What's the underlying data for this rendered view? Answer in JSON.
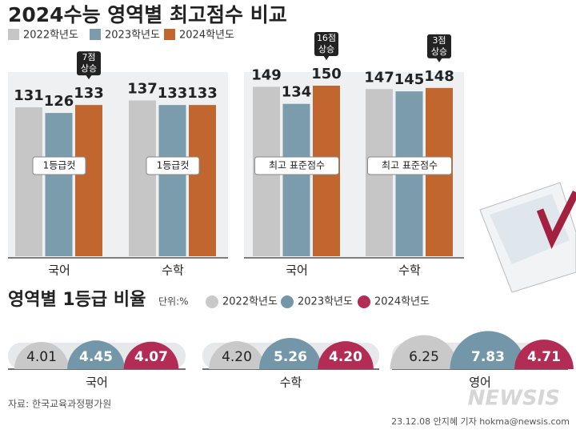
{
  "title": "2024수능 영역별 최고점수 비교",
  "chart_data": [
    {
      "type": "bar",
      "label": "1등급컷",
      "categories": [
        "국어",
        "수학"
      ],
      "series": [
        {
          "name": "2022학년도",
          "color": "#c6c6c6",
          "values": [
            131,
            137
          ]
        },
        {
          "name": "2023학년도",
          "color": "#7b9cad",
          "values": [
            126,
            133
          ]
        },
        {
          "name": "2024학년도",
          "color": "#c1662f",
          "values": [
            133,
            133
          ]
        }
      ],
      "callouts": [
        [
          "7점",
          "상승"
        ],
        null
      ]
    },
    {
      "type": "bar",
      "label": "최고 표준점수",
      "categories": [
        "국어",
        "수학"
      ],
      "series": [
        {
          "color": "#c6c6c6",
          "values": [
            149,
            147
          ]
        },
        {
          "color": "#7b9cad",
          "values": [
            134,
            145
          ]
        },
        {
          "color": "#c1662f",
          "values": [
            150,
            148
          ]
        }
      ],
      "callouts": [
        [
          "16점",
          "상승"
        ],
        [
          "3점",
          "상승"
        ]
      ]
    },
    {
      "type": "semicircle",
      "title": "영역별 1등급 비율",
      "unit": "단위:%",
      "categories": [
        "국어",
        "수학",
        "영어"
      ],
      "series": [
        {
          "name": "2022학년도",
          "color": "#c9c9c9",
          "values": [
            4.01,
            4.2,
            6.25
          ],
          "value_labels": [
            "4.01",
            "4.20",
            "6.25"
          ]
        },
        {
          "name": "2023학년도",
          "color": "#7396a9",
          "values": [
            4.45,
            5.26,
            7.83
          ]
        },
        {
          "name": "2024학년도",
          "color": "#b22c55",
          "values": [
            4.07,
            4.2,
            4.71
          ],
          "value_labels": [
            "4.07",
            "4.20",
            "4.71"
          ]
        }
      ]
    }
  ],
  "source": "자료: 한국교육과정평가원",
  "credit": "23.12.08 안지혜 기자 hokma@newsis.com",
  "logo": "NEWSIS"
}
